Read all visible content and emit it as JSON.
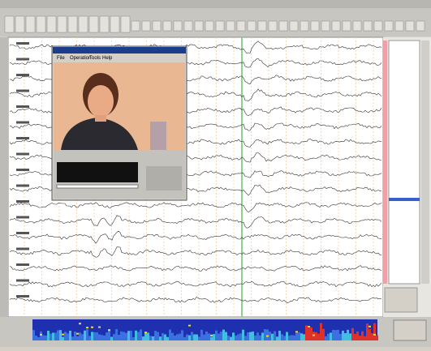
{
  "video_window": {
    "menu": [
      "File",
      "Operation",
      "Tools",
      "Help"
    ]
  }
}
